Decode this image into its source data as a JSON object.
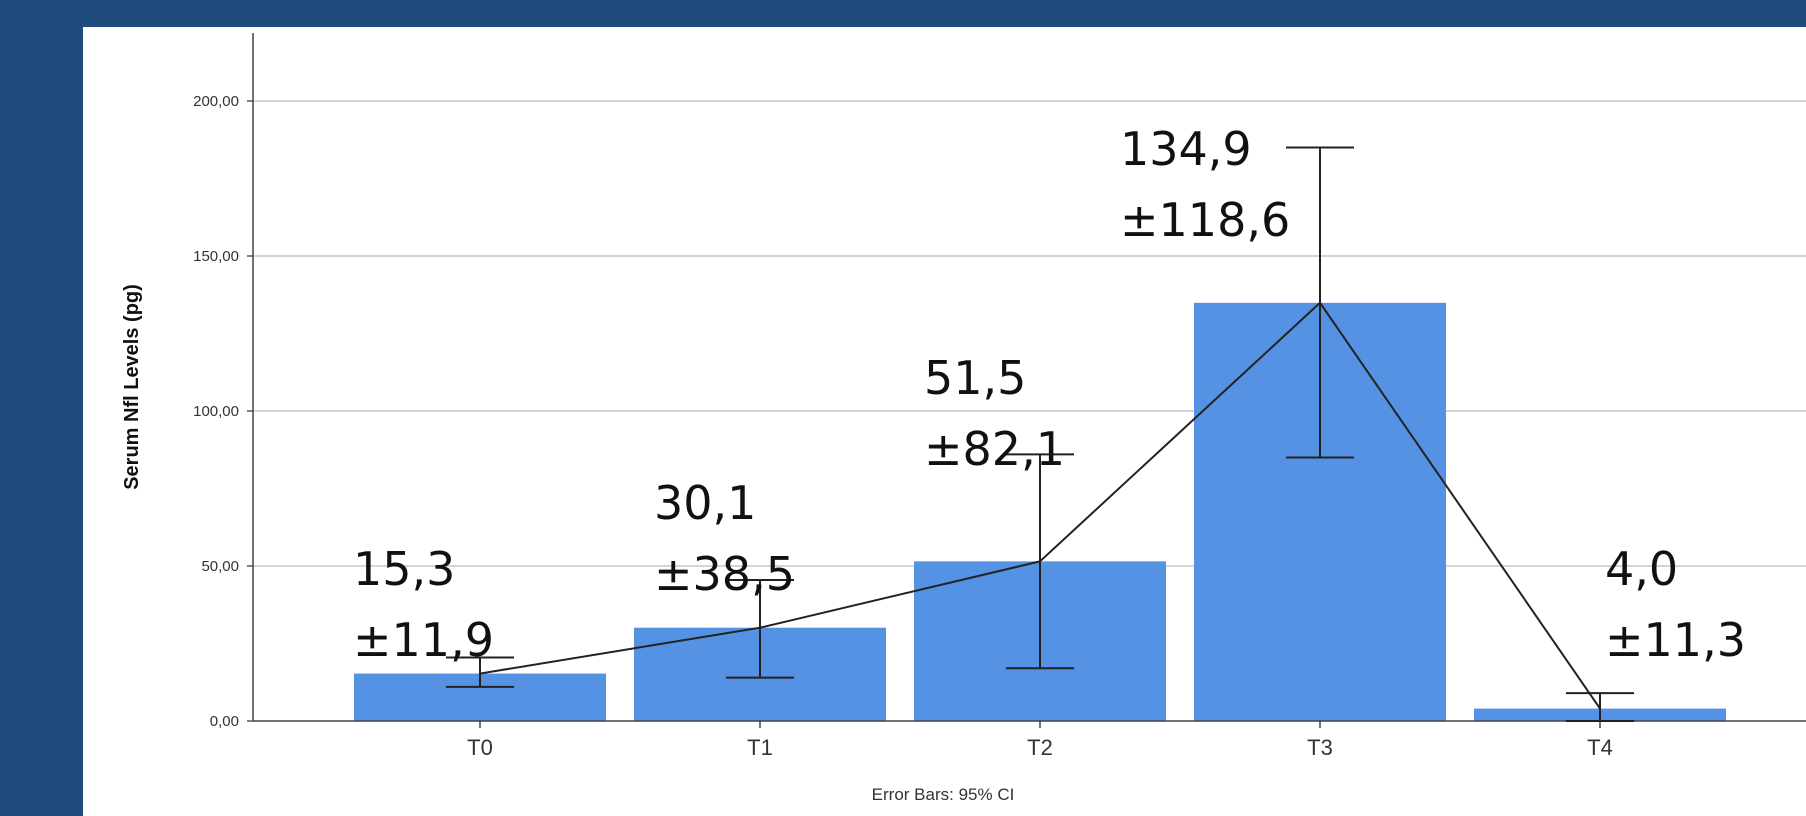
{
  "chart_data": {
    "type": "bar",
    "categories": [
      "T0",
      "T1",
      "T2",
      "T3",
      "T4"
    ],
    "values": [
      15.3,
      30.1,
      51.5,
      134.9,
      4.0
    ],
    "ci_lower": [
      11.0,
      14.0,
      17.0,
      85.0,
      0.0
    ],
    "ci_upper": [
      20.5,
      45.5,
      86.0,
      185.0,
      9.0
    ],
    "annotations": [
      {
        "value": "15,3",
        "sd": "±11,9"
      },
      {
        "value": "30,1",
        "sd": "±38,5"
      },
      {
        "value": "51,5",
        "sd": "±82,1"
      },
      {
        "value": "134,9",
        "sd": "±118,6"
      },
      {
        "value": "4,0",
        "sd": "±11,3"
      }
    ],
    "y_ticks": [
      "0,00",
      "50,00",
      "100,00",
      "150,00",
      "200,00"
    ],
    "ylim": [
      0,
      220
    ],
    "ylabel": "Serum Nfl Levels (pg)",
    "xlabel": "",
    "footnote": "Error Bars: 95% CI",
    "grid": true,
    "has_mean_line": true,
    "colors": {
      "bar": "#5592e3",
      "line": "#222222",
      "grid": "#d4d4d4",
      "background": "#1f4a7d"
    }
  }
}
